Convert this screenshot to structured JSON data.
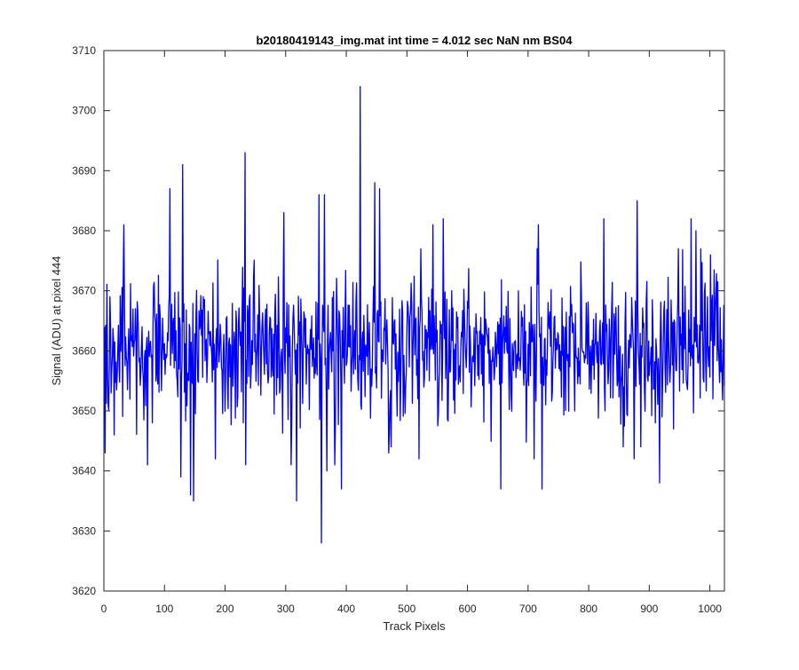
{
  "chart_data": {
    "type": "line",
    "title": "b20180419143_img.mat int time = 4.012 sec  NaN nm BS04",
    "xlabel": "Track Pixels",
    "ylabel": "Signal (ADU) at pixel 444",
    "xlim": [
      0,
      1024
    ],
    "ylim": [
      3620,
      3710
    ],
    "xticks": [
      0,
      100,
      200,
      300,
      400,
      500,
      600,
      700,
      800,
      900,
      1000
    ],
    "yticks": [
      3620,
      3630,
      3640,
      3650,
      3660,
      3670,
      3680,
      3690,
      3700,
      3710
    ],
    "grid": false,
    "series_color": "#0000ff",
    "series": [
      {
        "x_start": 1,
        "x_step": 1,
        "noise": {
          "count": 1024,
          "mean": 3660.5,
          "std": 5.8,
          "seed": 20180419
        },
        "spikes": [
          [
            2,
            3643
          ],
          [
            7,
            3651
          ],
          [
            10,
            3669
          ],
          [
            33,
            3681
          ],
          [
            72,
            3641
          ],
          [
            80,
            3648
          ],
          [
            109,
            3687
          ],
          [
            127,
            3639
          ],
          [
            130,
            3691
          ],
          [
            143,
            3636
          ],
          [
            148,
            3635
          ],
          [
            164,
            3669
          ],
          [
            184,
            3642
          ],
          [
            233,
            3693
          ],
          [
            234,
            3641
          ],
          [
            297,
            3683
          ],
          [
            309,
            3641
          ],
          [
            318,
            3635
          ],
          [
            355,
            3686
          ],
          [
            359,
            3628
          ],
          [
            364,
            3686
          ],
          [
            368,
            3640
          ],
          [
            381,
            3641
          ],
          [
            392,
            3637
          ],
          [
            423,
            3704
          ],
          [
            447,
            3688
          ],
          [
            455,
            3687
          ],
          [
            470,
            3643
          ],
          [
            520,
            3642
          ],
          [
            543,
            3681
          ],
          [
            560,
            3682
          ],
          [
            655,
            3637
          ],
          [
            710,
            3642
          ],
          [
            717,
            3681
          ],
          [
            723,
            3637
          ],
          [
            825,
            3682
          ],
          [
            875,
            3642
          ],
          [
            880,
            3685
          ],
          [
            917,
            3638
          ],
          [
            940,
            3647
          ],
          [
            969,
            3682
          ],
          [
            977,
            3680
          ],
          [
            1010,
            3670
          ]
        ]
      }
    ]
  }
}
